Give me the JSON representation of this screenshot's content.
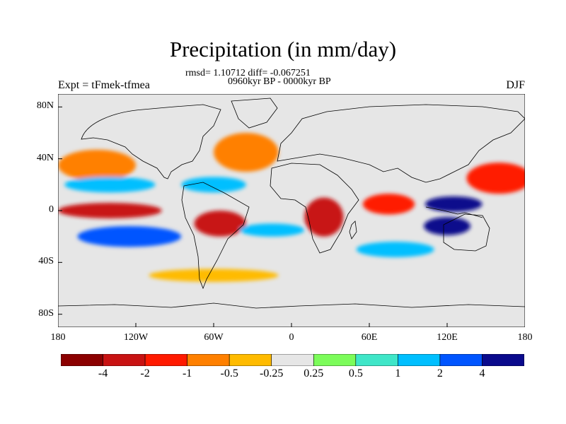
{
  "title": "Precipitation (in mm/day)",
  "stats": "rmsd= 1.10712 diff= -0.067251",
  "period": "0960kyr BP - 0000kyr BP",
  "experiment": "Expt = tFmek-tfmea",
  "season": "DJF",
  "map": {
    "projection": "cylindrical-equidistant",
    "lon_range": [
      -180,
      180
    ],
    "lat_range": [
      -90,
      90
    ],
    "x_ticks": [
      {
        "lon": -180,
        "label": "180"
      },
      {
        "lon": -120,
        "label": "120W"
      },
      {
        "lon": -60,
        "label": "60W"
      },
      {
        "lon": 0,
        "label": "0"
      },
      {
        "lon": 60,
        "label": "60E"
      },
      {
        "lon": 120,
        "label": "120E"
      },
      {
        "lon": 180,
        "label": "180"
      }
    ],
    "y_ticks": [
      {
        "lat": 80,
        "label": "80N"
      },
      {
        "lat": 40,
        "label": "40N"
      },
      {
        "lat": 0,
        "label": "0"
      },
      {
        "lat": -40,
        "label": "40S"
      },
      {
        "lat": -80,
        "label": "80S"
      }
    ],
    "background_color": "#e6e6e6"
  },
  "colorbar": {
    "colors": [
      "#8b0000",
      "#c81212",
      "#ff1a00",
      "#ff8000",
      "#ffbb00",
      "#e6e6e6",
      "#7cfc5a",
      "#3fe6c8",
      "#00bfff",
      "#0055ff",
      "#0a0a8c"
    ],
    "labels": [
      {
        "value": "-4",
        "boundary": 1
      },
      {
        "value": "-2",
        "boundary": 2
      },
      {
        "value": "-1",
        "boundary": 3
      },
      {
        "value": "-0.5",
        "boundary": 4
      },
      {
        "value": "-0.25",
        "boundary": 5
      },
      {
        "value": "0.25",
        "boundary": 6
      },
      {
        "value": "0.5",
        "boundary": 7
      },
      {
        "value": "1",
        "boundary": 8
      },
      {
        "value": "2",
        "boundary": 9
      },
      {
        "value": "4",
        "boundary": 10
      }
    ]
  },
  "anomaly_regions": [
    {
      "name": "north-pacific-positive",
      "lon": -150,
      "lat": 35,
      "rx": 30,
      "ry": 12,
      "level": 3
    },
    {
      "name": "north-atlantic-positive",
      "lon": -35,
      "lat": 45,
      "rx": 25,
      "ry": 15,
      "level": 3
    },
    {
      "name": "north-pacific-negative",
      "lon": -140,
      "lat": 20,
      "rx": 35,
      "ry": 6,
      "level": 8
    },
    {
      "name": "caribbean-negative",
      "lon": -60,
      "lat": 20,
      "rx": 25,
      "ry": 6,
      "level": 8
    },
    {
      "name": "equatorial-pacific-positive",
      "lon": -140,
      "lat": 0,
      "rx": 40,
      "ry": 6,
      "level": 1
    },
    {
      "name": "south-america-positive",
      "lon": -55,
      "lat": -10,
      "rx": 20,
      "ry": 10,
      "level": 1
    },
    {
      "name": "south-pacific-negative",
      "lon": -125,
      "lat": -20,
      "rx": 40,
      "ry": 8,
      "level": 9
    },
    {
      "name": "south-atlantic-negative",
      "lon": -15,
      "lat": -15,
      "rx": 25,
      "ry": 5,
      "level": 8
    },
    {
      "name": "africa-positive",
      "lon": 25,
      "lat": -5,
      "rx": 15,
      "ry": 15,
      "level": 1
    },
    {
      "name": "indian-ocean-positive",
      "lon": 75,
      "lat": 5,
      "rx": 20,
      "ry": 8,
      "level": 2
    },
    {
      "name": "maritime-continent-negative",
      "lon": 125,
      "lat": 5,
      "rx": 22,
      "ry": 6,
      "level": 10
    },
    {
      "name": "north-australia-negative",
      "lon": 120,
      "lat": -12,
      "rx": 18,
      "ry": 7,
      "level": 10
    },
    {
      "name": "west-pacific-positive",
      "lon": 160,
      "lat": 25,
      "rx": 25,
      "ry": 12,
      "level": 2
    },
    {
      "name": "south-indian-negative",
      "lon": 80,
      "lat": -30,
      "rx": 30,
      "ry": 6,
      "level": 8
    },
    {
      "name": "southern-ocean-positive",
      "lon": -60,
      "lat": -50,
      "rx": 50,
      "ry": 5,
      "level": 4
    }
  ]
}
